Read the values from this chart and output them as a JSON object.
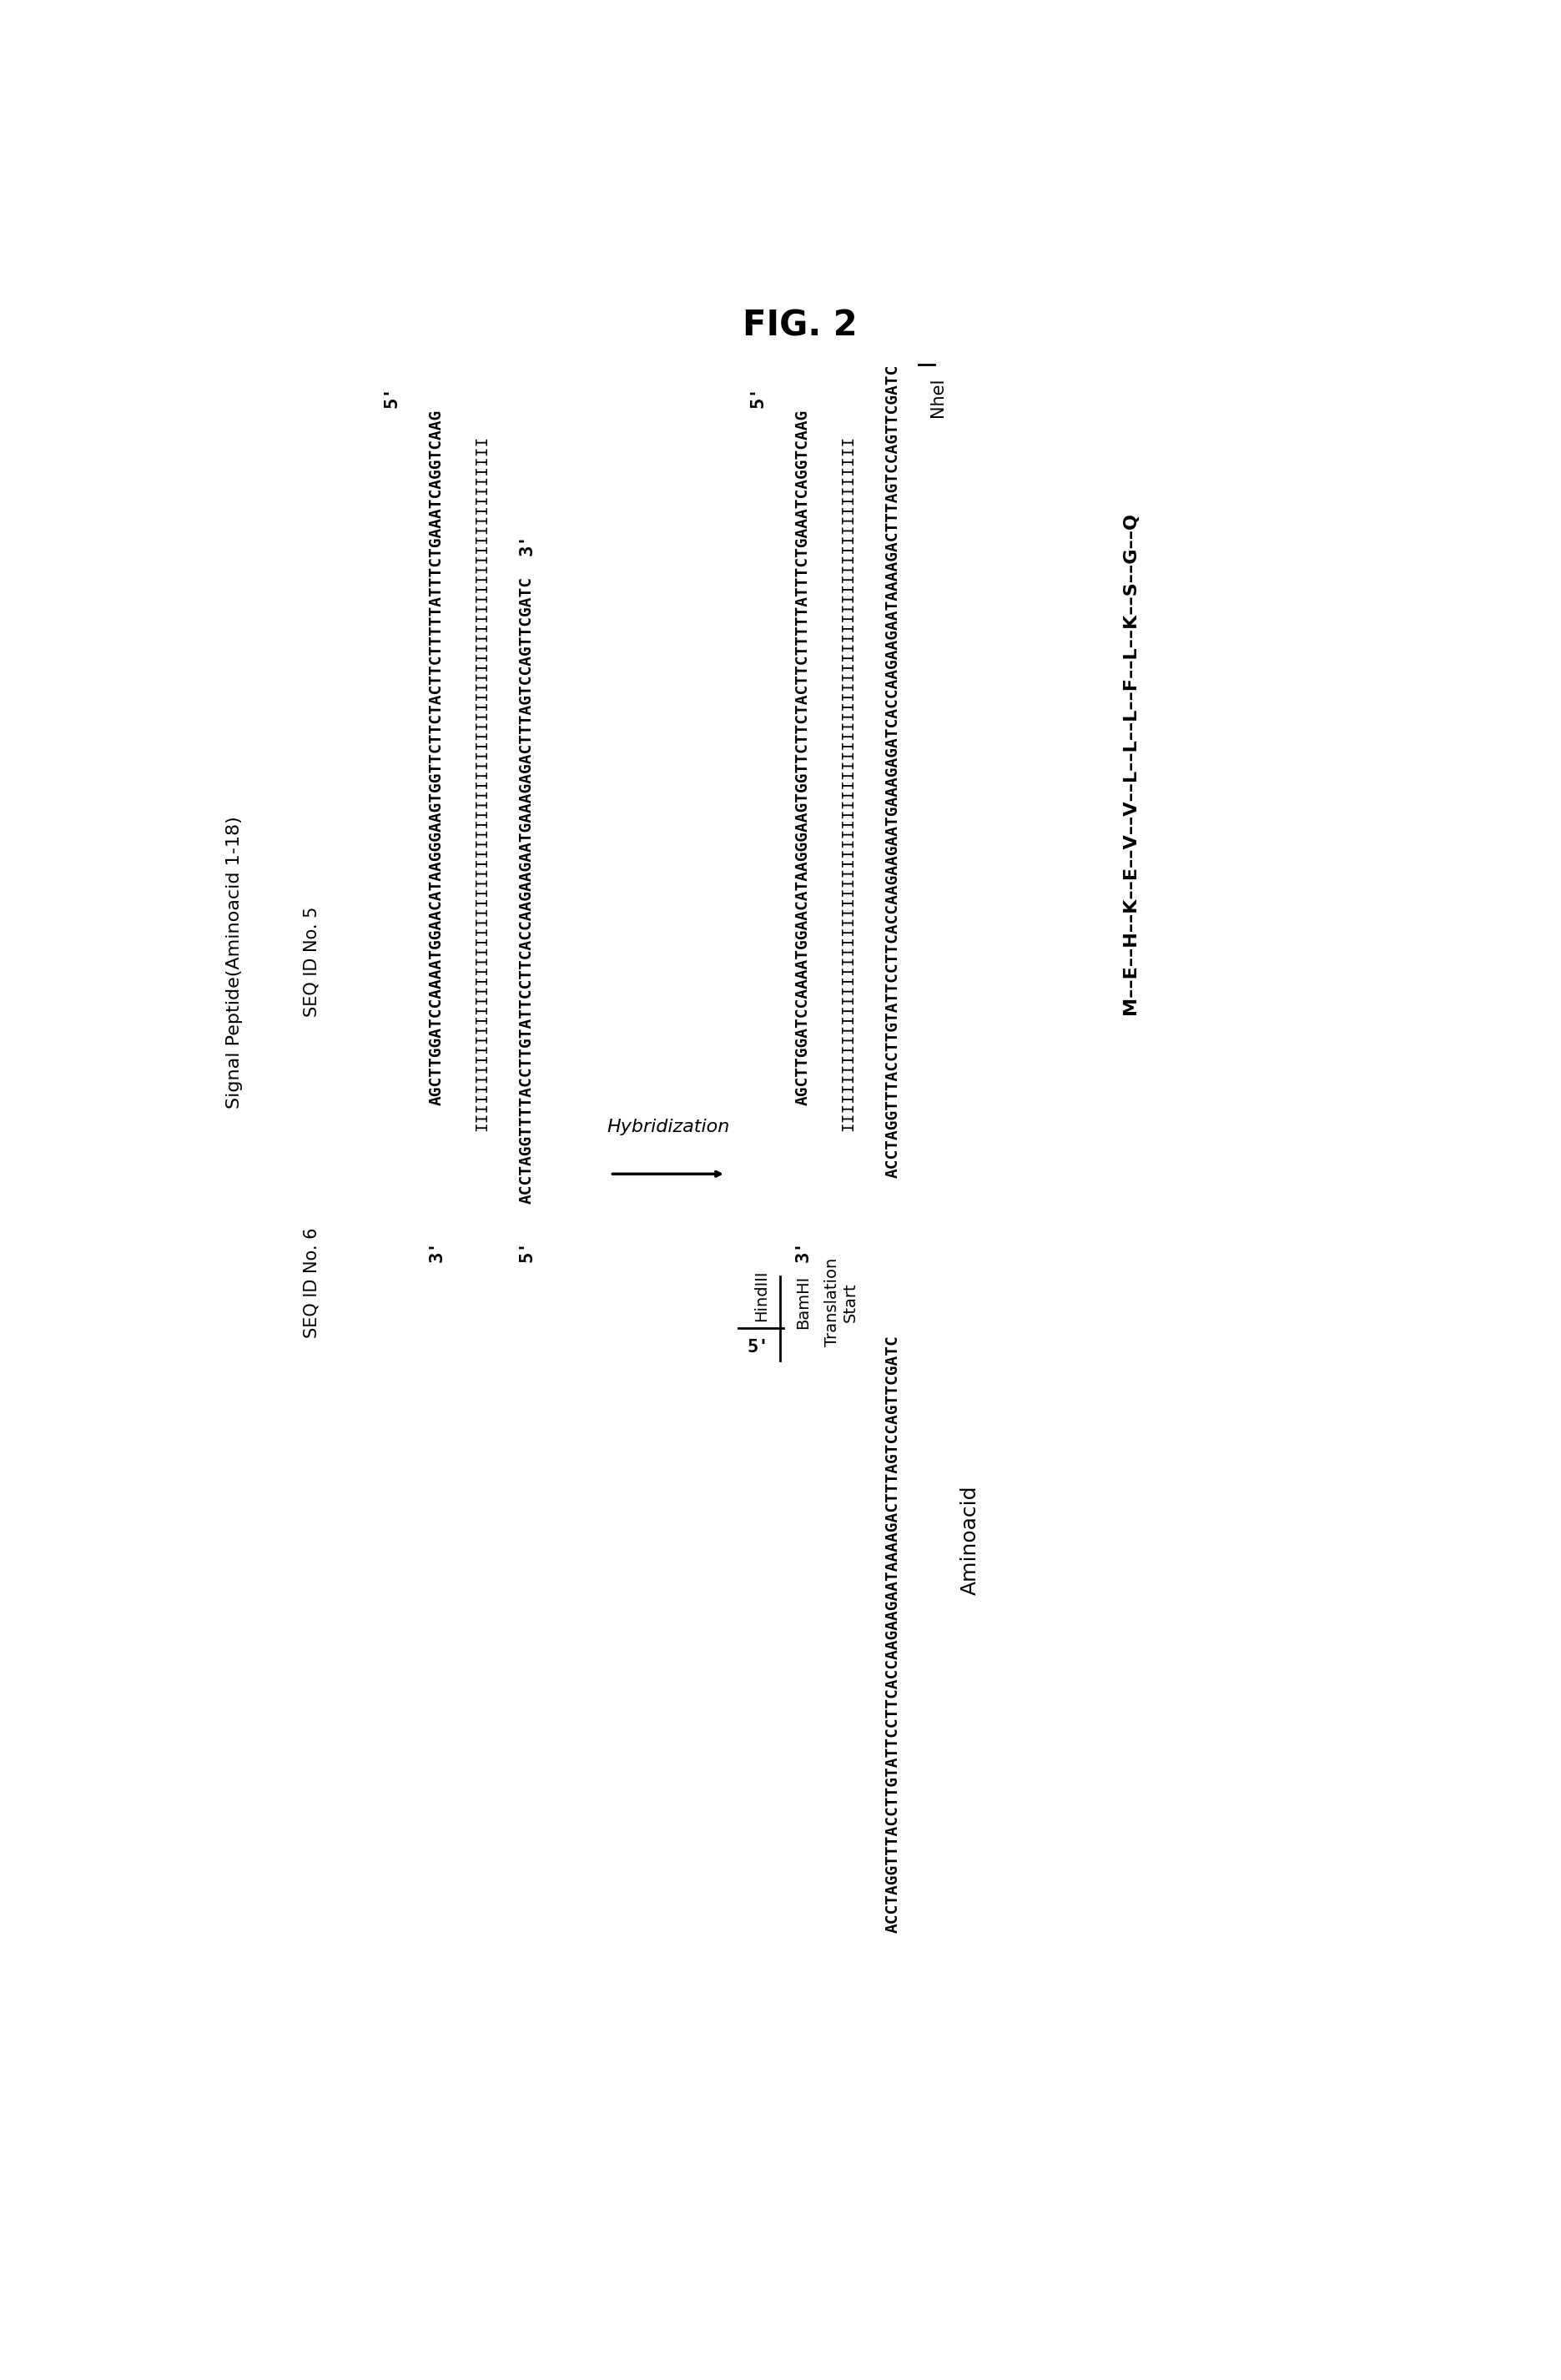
{
  "title": "FIG. 2",
  "background_color": "#ffffff",
  "signal_peptide_label": "Signal Peptide(Aminoacid 1-18)",
  "seq_id_5_label": "SEQ ID No. 5",
  "seq_id_6_label": "SEQ ID No. 6",
  "left_5prime": "5'",
  "left_3prime_top": "3'",
  "left_3prime_bottom": "3'",
  "left_5prime_bottom": "5'",
  "seq5_left": "AGCTTGGATCCAAAATGGAACATAAGGGAAGTGGTTCTTCTACTTCTTTTTATTTCTGAAATCAGGTCAAG",
  "dashes_left": "IIIIIIIIIIIIIIIIIIIIIIIIIIIIIIIIIIIIIIIIIIIIIIIIIIIIIIIIIIIIIIIIIIIIIII",
  "seq6_left": "ACCTAGGTTTTACCTTGTATTCCTTCACCAAGAAGAATGAAAGAGACTTTAGTCCAGTTCGATC",
  "hybridization_label": "Hybridization",
  "right_5prime_top": "5'",
  "right_3prime_top": "3'",
  "seq5_right": "AGCTTGGATCCAAAATGGAACATAAGGGAAGTGGTTCTTCTACTTCTTTTTATTTCTGAAATCAGGTCAAG",
  "dashes_right": "IIIIIIIIIIIIIIIIIIIIIIIIIIIIIIIIIIIIIIIIIIIIIIIIIIIIIIIIIIIIIIIIIIIIIII",
  "seq6_right": "ACCTAGGTTTACCTTGTATTCCTTCACCAAGAAGAATGAAAGAGATCACCAAGAAGAATAAAAGACTTTAGTCCAGTTCGATC",
  "nhe_label": "NheI",
  "bamhi_label": "BamHI",
  "hindiii_label": "HindIII",
  "translation_start_label": "Translation\nStart",
  "five_prime_right_bottom": "5'",
  "aminoacid_label": "Aminoacid",
  "aa_seq": "M––E––H––K––E––V––V––L––L––L––F––L––K––S––G––Q"
}
